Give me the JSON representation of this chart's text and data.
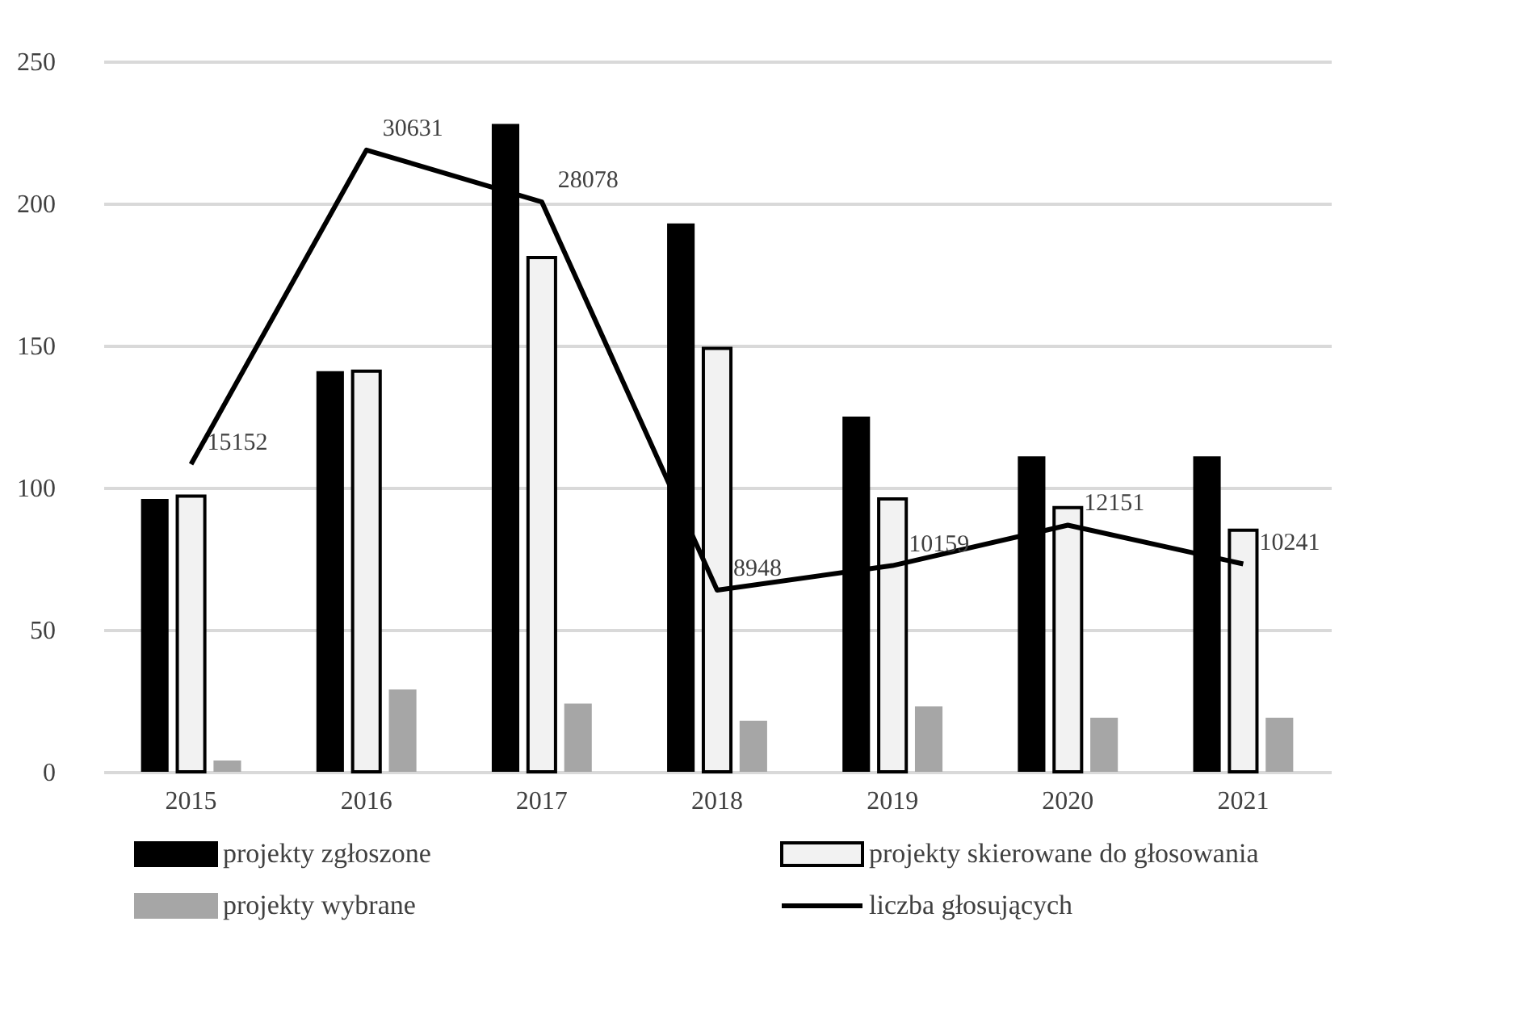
{
  "chart_data": {
    "type": "bar",
    "categories": [
      "2015",
      "2016",
      "2017",
      "2018",
      "2019",
      "2020",
      "2021"
    ],
    "series": [
      {
        "name": "projekty zgłoszone",
        "color": "#000000",
        "values": [
          96,
          141,
          228,
          193,
          125,
          111,
          111
        ]
      },
      {
        "name": "projekty skierowane do głosowania",
        "color": "#f2f2f2",
        "values": [
          97,
          141,
          181,
          149,
          96,
          93,
          85
        ]
      },
      {
        "name": "projekty wybrane",
        "color": "#a6a6a6",
        "values": [
          4,
          29,
          24,
          18,
          23,
          19,
          19
        ]
      },
      {
        "name": "liczba głosujących",
        "type": "line",
        "axis": "y2",
        "color": "#000000",
        "values": [
          15152,
          30631,
          28078,
          8948,
          10159,
          12151,
          10241
        ],
        "value_labels": [
          "15152",
          "30631",
          "28078",
          "8948",
          "10159",
          "12151",
          "10241"
        ]
      }
    ],
    "ylim": [
      0,
      250
    ],
    "yticks": [
      0,
      50,
      100,
      150,
      200,
      250
    ],
    "y2lim": [
      0,
      35000
    ],
    "grid": "y",
    "legend": "bottom",
    "tick_labels": "xy"
  }
}
